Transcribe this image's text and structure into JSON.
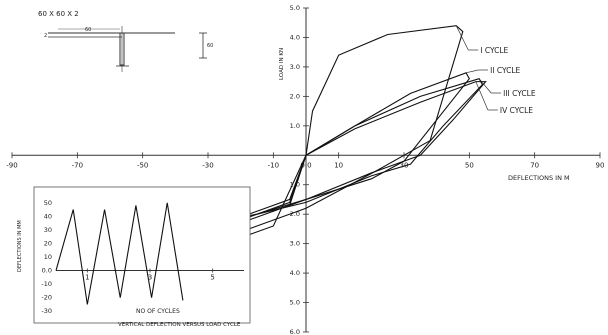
{
  "section": {
    "label": "60 X 60 X 2",
    "dim_60": "60",
    "dim_2": "2"
  },
  "chart_data": [
    {
      "type": "line",
      "title": "",
      "xlabel": "DEFLECTIONS IN M",
      "ylabel": "LOAD IN KN",
      "x_ticks": [
        "-90",
        "-70",
        "-50",
        "-30",
        "-10",
        "0.0",
        "10",
        "30",
        "50",
        "70",
        "90"
      ],
      "y_ticks_pos": [
        "5.0",
        "4.0",
        "3.0",
        "2.0",
        "1.0"
      ],
      "y_ticks_neg": [
        "1.0",
        "2.0",
        "3.0",
        "4.0",
        "5.0",
        "6.0"
      ],
      "xlim": [
        -90,
        90
      ],
      "ylim": [
        -6,
        5
      ],
      "series": [
        {
          "name": "I CYCLE",
          "x": [
            0,
            2,
            10,
            25,
            46,
            48,
            38,
            22,
            0,
            -20,
            -25,
            -20,
            -10,
            0
          ],
          "y": [
            0,
            1.5,
            3.4,
            4.1,
            4.4,
            4.2,
            0.5,
            -0.5,
            -1.8,
            -2.6,
            -3.0,
            -2.8,
            -2.4,
            0
          ]
        },
        {
          "name": "II CYCLE",
          "x": [
            0,
            15,
            32,
            49,
            50,
            40,
            30,
            20,
            0,
            -15,
            -20,
            -15,
            -5,
            0
          ],
          "y": [
            0,
            1.0,
            2.1,
            2.8,
            2.6,
            1.2,
            -0.2,
            -0.8,
            -1.5,
            -2.1,
            -2.3,
            -2.1,
            -1.7,
            0
          ],
          "label_x": [
            36,
            53
          ]
        },
        {
          "name": "III CYCLE",
          "x": [
            0,
            15,
            35,
            53,
            54,
            42,
            32,
            20,
            0,
            -15,
            -20,
            -15,
            -5,
            0
          ],
          "y": [
            0,
            1.0,
            2.0,
            2.6,
            2.4,
            1.0,
            -0.3,
            -0.7,
            -1.6,
            -2.0,
            -2.2,
            -2.0,
            -1.6,
            0
          ],
          "label_x": [
            58,
            59
          ]
        },
        {
          "name": "IV CYCLE",
          "x": [
            0,
            15,
            35,
            52,
            55,
            45,
            35,
            20,
            0,
            -15,
            -20,
            -15,
            -5,
            0
          ],
          "y": [
            0,
            0.9,
            1.8,
            2.5,
            2.5,
            1.2,
            0.0,
            -0.6,
            -1.5,
            -2.0,
            -2.1,
            -1.9,
            -1.5,
            0
          ],
          "label_x": [
            54,
            58
          ]
        }
      ]
    },
    {
      "type": "line",
      "title": "VERTICAL DEFLECTION VERSUS LOAD CYCLE",
      "xlabel": "NO OF CYCLES",
      "ylabel": "DEFLECTIONS IN MM",
      "x_ticks": [
        "1",
        "3",
        "5"
      ],
      "y_ticks": [
        "50",
        "40",
        "30",
        "20",
        "10",
        "0.0",
        "-10",
        "-20",
        "-30"
      ],
      "xlim": [
        0,
        6
      ],
      "ylim": [
        -35,
        55
      ],
      "series": [
        {
          "name": "",
          "x": [
            0,
            0.55,
            1.0,
            1.55,
            2.05,
            2.55,
            3.05,
            3.55,
            4.05
          ],
          "y": [
            0,
            45,
            -25,
            45,
            -20,
            48,
            -20,
            50,
            -22
          ]
        }
      ]
    }
  ]
}
